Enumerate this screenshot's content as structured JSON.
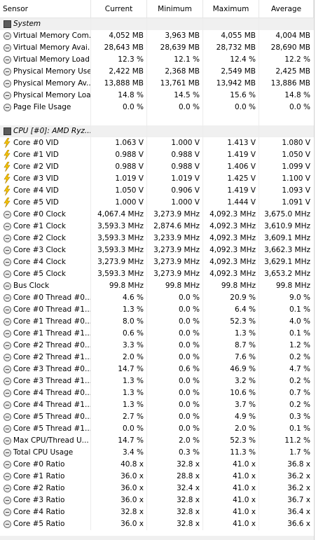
{
  "header": {
    "columns": [
      "Sensor",
      "Current",
      "Minimum",
      "Maximum",
      "Average"
    ]
  },
  "groups": [
    {
      "title": "System",
      "rows": [
        [
          "Virtual Memory Com...",
          "4,052 MB",
          "3,963 MB",
          "4,055 MB",
          "4,004 MB"
        ],
        [
          "Virtual Memory Avai...",
          "28,643 MB",
          "28,639 MB",
          "28,732 MB",
          "28,690 MB"
        ],
        [
          "Virtual Memory Load",
          "12.3 %",
          "12.1 %",
          "12.4 %",
          "12.2 %"
        ],
        [
          "Physical Memory Used",
          "2,422 MB",
          "2,368 MB",
          "2,549 MB",
          "2,425 MB"
        ],
        [
          "Physical Memory Av...",
          "13,888 MB",
          "13,761 MB",
          "13,942 MB",
          "13,886 MB"
        ],
        [
          "Physical Memory Load",
          "14.8 %",
          "14.5 %",
          "15.6 %",
          "14.8 %"
        ],
        [
          "Page File Usage",
          "0.0 %",
          "0.0 %",
          "0.0 %",
          "0.0 %"
        ]
      ]
    },
    {
      "title": "CPU [#0]: AMD Ryz...",
      "rows": [
        [
          "Core #0 VID",
          "1.063 V",
          "1.000 V",
          "1.413 V",
          "1.080 V"
        ],
        [
          "Core #1 VID",
          "0.988 V",
          "0.988 V",
          "1.419 V",
          "1.050 V"
        ],
        [
          "Core #2 VID",
          "0.988 V",
          "0.988 V",
          "1.406 V",
          "1.099 V"
        ],
        [
          "Core #3 VID",
          "1.019 V",
          "1.019 V",
          "1.425 V",
          "1.100 V"
        ],
        [
          "Core #4 VID",
          "1.050 V",
          "0.906 V",
          "1.419 V",
          "1.093 V"
        ],
        [
          "Core #5 VID",
          "1.000 V",
          "1.000 V",
          "1.444 V",
          "1.091 V"
        ],
        [
          "Core #0 Clock",
          "4,067.4 MHz",
          "3,273.9 MHz",
          "4,092.3 MHz",
          "3,675.0 MHz"
        ],
        [
          "Core #1 Clock",
          "3,593.3 MHz",
          "2,874.6 MHz",
          "4,092.3 MHz",
          "3,610.9 MHz"
        ],
        [
          "Core #2 Clock",
          "3,593.3 MHz",
          "3,233.9 MHz",
          "4,092.3 MHz",
          "3,609.1 MHz"
        ],
        [
          "Core #3 Clock",
          "3,593.3 MHz",
          "3,273.9 MHz",
          "4,092.3 MHz",
          "3,662.3 MHz"
        ],
        [
          "Core #4 Clock",
          "3,273.9 MHz",
          "3,273.9 MHz",
          "4,092.3 MHz",
          "3,629.1 MHz"
        ],
        [
          "Core #5 Clock",
          "3,593.3 MHz",
          "3,273.9 MHz",
          "4,092.3 MHz",
          "3,653.2 MHz"
        ],
        [
          "Bus Clock",
          "99.8 MHz",
          "99.8 MHz",
          "99.8 MHz",
          "99.8 MHz"
        ],
        [
          "Core #0 Thread #0...",
          "4.6 %",
          "0.0 %",
          "20.9 %",
          "9.0 %"
        ],
        [
          "Core #0 Thread #1...",
          "1.3 %",
          "0.0 %",
          "6.4 %",
          "0.1 %"
        ],
        [
          "Core #1 Thread #0...",
          "8.0 %",
          "0.0 %",
          "52.3 %",
          "4.0 %"
        ],
        [
          "Core #1 Thread #1...",
          "0.6 %",
          "0.0 %",
          "1.3 %",
          "0.1 %"
        ],
        [
          "Core #2 Thread #0...",
          "3.3 %",
          "0.0 %",
          "8.7 %",
          "1.2 %"
        ],
        [
          "Core #2 Thread #1...",
          "2.0 %",
          "0.0 %",
          "7.6 %",
          "0.2 %"
        ],
        [
          "Core #3 Thread #0...",
          "14.7 %",
          "0.6 %",
          "46.9 %",
          "4.7 %"
        ],
        [
          "Core #3 Thread #1...",
          "1.3 %",
          "0.0 %",
          "3.2 %",
          "0.2 %"
        ],
        [
          "Core #4 Thread #0...",
          "1.3 %",
          "0.0 %",
          "10.6 %",
          "0.7 %"
        ],
        [
          "Core #4 Thread #1...",
          "1.3 %",
          "0.0 %",
          "3.7 %",
          "0.2 %"
        ],
        [
          "Core #5 Thread #0...",
          "2.7 %",
          "0.0 %",
          "4.9 %",
          "0.3 %"
        ],
        [
          "Core #5 Thread #1...",
          "0.0 %",
          "0.0 %",
          "2.0 %",
          "0.1 %"
        ],
        [
          "Max CPU/Thread U...",
          "14.7 %",
          "2.0 %",
          "52.3 %",
          "11.2 %"
        ],
        [
          "Total CPU Usage",
          "3.4 %",
          "0.3 %",
          "11.3 %",
          "1.7 %"
        ],
        [
          "Core #0 Ratio",
          "40.8 x",
          "32.8 x",
          "41.0 x",
          "36.8 x"
        ],
        [
          "Core #1 Ratio",
          "36.0 x",
          "28.8 x",
          "41.0 x",
          "36.2 x"
        ],
        [
          "Core #2 Ratio",
          "36.0 x",
          "32.4 x",
          "41.0 x",
          "36.2 x"
        ],
        [
          "Core #3 Ratio",
          "36.0 x",
          "32.8 x",
          "41.0 x",
          "36.7 x"
        ],
        [
          "Core #4 Ratio",
          "32.8 x",
          "32.8 x",
          "41.0 x",
          "36.4 x"
        ],
        [
          "Core #5 Ratio",
          "36.0 x",
          "32.8 x",
          "41.0 x",
          "36.6 x"
        ]
      ]
    }
  ]
}
